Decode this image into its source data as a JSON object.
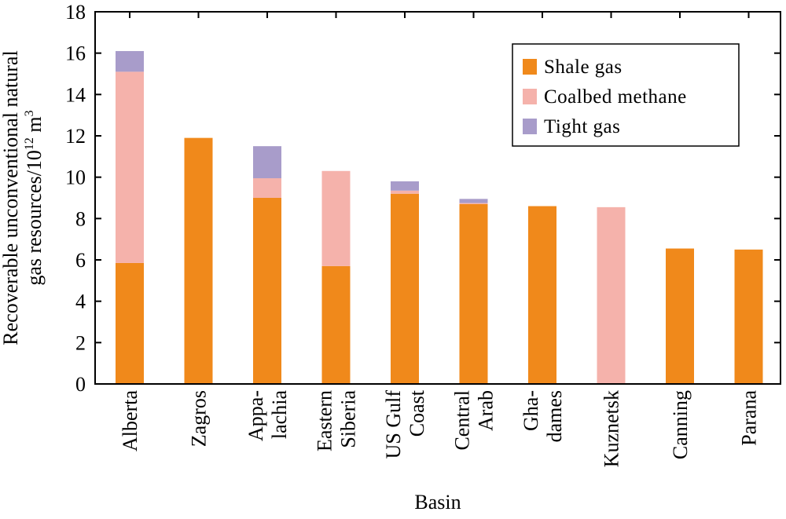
{
  "chart_data": {
    "type": "bar",
    "stacked": true,
    "title": "",
    "xlabel": "Basin",
    "ylabel_line1": "Recoverable unconventional natural",
    "ylabel_line2_prefix": "gas resources/10",
    "ylabel_line2_exp": "12",
    "ylabel_line2_unit": " m",
    "ylabel_line2_unit_exp": "3",
    "ylim": [
      0,
      18
    ],
    "yticks": [
      0,
      2,
      4,
      6,
      8,
      10,
      12,
      14,
      16,
      18
    ],
    "grid": false,
    "legend_position": "top-right",
    "categories": [
      [
        "Alberta"
      ],
      [
        "Zagros"
      ],
      [
        "Appa-",
        "lachia"
      ],
      [
        "Eastern",
        "Siberia"
      ],
      [
        "US Gulf",
        "Coast"
      ],
      [
        "Central",
        "Arab"
      ],
      [
        "Gha-",
        "dames"
      ],
      [
        "Kuznetsk"
      ],
      [
        "Canning"
      ],
      [
        "Parana"
      ]
    ],
    "series": [
      {
        "name": "Shale gas",
        "color": "#f0891b",
        "values": [
          5.85,
          11.9,
          9.0,
          5.7,
          9.2,
          8.7,
          8.6,
          0,
          6.55,
          6.5
        ]
      },
      {
        "name": "Coalbed methane",
        "color": "#f5b2ab",
        "values": [
          9.25,
          0,
          0.95,
          4.6,
          0.15,
          0.05,
          0,
          8.55,
          0,
          0
        ]
      },
      {
        "name": "Tight gas",
        "color": "#a89cca",
        "values": [
          1.0,
          0,
          1.55,
          0,
          0.45,
          0.2,
          0,
          0,
          0,
          0
        ]
      }
    ]
  }
}
